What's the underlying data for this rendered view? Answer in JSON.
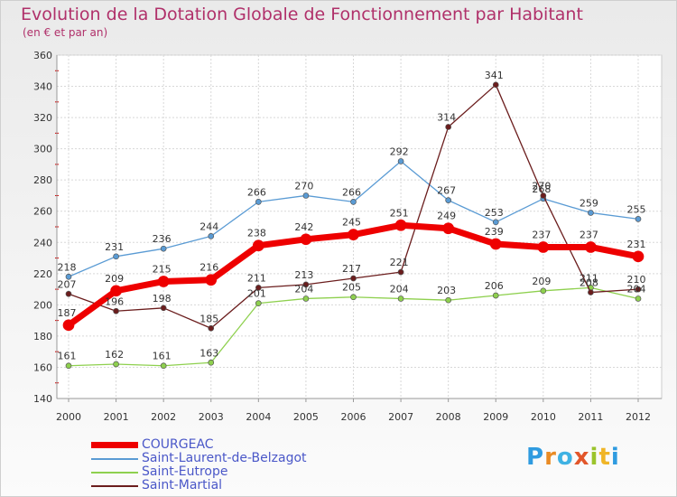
{
  "chart_data": {
    "type": "line",
    "title": "Evolution de la Dotation Globale de Fonctionnement par Habitant",
    "subtitle": "(en € et par an)",
    "x": [
      "2000",
      "2001",
      "2002",
      "2003",
      "2004",
      "2005",
      "2006",
      "2007",
      "2008",
      "2009",
      "2010",
      "2011",
      "2012"
    ],
    "ylim": [
      140,
      360
    ],
    "yticks": [
      140,
      160,
      180,
      200,
      220,
      240,
      260,
      280,
      300,
      320,
      340,
      360
    ],
    "grid": true,
    "legend_position": "bottom-left",
    "series": [
      {
        "name": "COURGEAC",
        "color": "#ee0000",
        "values": [
          187,
          209,
          215,
          216,
          238,
          242,
          245,
          251,
          249,
          239,
          237,
          237,
          231
        ]
      },
      {
        "name": "Saint-Laurent-de-Belzagot",
        "color": "#5a9bd4",
        "values": [
          218,
          231,
          236,
          244,
          266,
          270,
          266,
          292,
          267,
          253,
          268,
          259,
          255
        ]
      },
      {
        "name": "Saint-Eutrope",
        "color": "#8ed04e",
        "values": [
          161,
          162,
          161,
          163,
          201,
          204,
          205,
          204,
          203,
          206,
          209,
          211,
          204
        ]
      },
      {
        "name": "Saint-Martial",
        "color": "#6b1d1d",
        "values": [
          207,
          196,
          198,
          185,
          211,
          213,
          217,
          221,
          314,
          341,
          270,
          208,
          210
        ]
      }
    ]
  },
  "logo": {
    "letters": [
      "P",
      "r",
      "o",
      "x",
      "i",
      "t",
      "i"
    ]
  }
}
